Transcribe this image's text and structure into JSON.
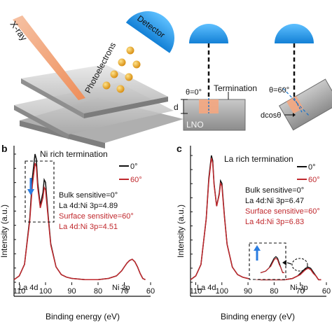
{
  "figure_a": {
    "xray_label": "X-ray",
    "photoelectrons_label": "Photoelectrons",
    "detector_label": "Detector",
    "termination_label": "Termination",
    "theta0_label": "θ=0°",
    "theta60_label": "θ=60°",
    "depth_label": "d",
    "dcos_label": "dcosθ",
    "sample_label": "LNO"
  },
  "panel_b": {
    "letter": "b",
    "title": "Ni rich termination",
    "legend": [
      "0°",
      "60°"
    ],
    "bulk_line": "Bulk sensitive=0°",
    "ratio_bulk": "La 4d:Ni 3p=4.89",
    "surface_line": "Surface sensitive=60°",
    "ratio_surface": "La 4d:Ni 3p=4.51",
    "peak_la": "La 4d",
    "peak_ni": "Ni 3p",
    "xlabel": "Binding energy (eV)",
    "ylabel": "Intensity (a.u.)",
    "xticks": [
      "110",
      "100",
      "90",
      "80",
      "70",
      "60"
    ]
  },
  "panel_c": {
    "letter": "c",
    "title": "La rich termination",
    "legend": [
      "0°",
      "60°"
    ],
    "bulk_line": "Bulk sensitive=0°",
    "ratio_bulk": "La 4d:Ni 3p=6.47",
    "surface_line": "Surface sensitive=60°",
    "ratio_surface": "La 4d:Ni 3p=6.83",
    "peak_la": "La 4d",
    "peak_ni": "Ni 3p",
    "xlabel": "Binding energy (eV)",
    "ylabel": "Intensity (a.u.)",
    "xticks": [
      "110",
      "100",
      "90",
      "80",
      "70",
      "60"
    ]
  },
  "colors": {
    "bulk": "#111111",
    "surface": "#c0282d",
    "detector": "#1f95e6",
    "photoelectron": "#f0a81c",
    "xray": "#f2a37a"
  },
  "chart_data": [
    {
      "type": "line",
      "panel": "b",
      "title": "Ni rich termination",
      "xlabel": "Binding energy (eV)",
      "ylabel": "Intensity (a.u.)",
      "xlim": [
        112,
        60
      ],
      "x_reversed": true,
      "x": [
        112,
        110,
        108,
        106,
        105,
        104,
        103.5,
        103,
        102,
        101,
        100.5,
        100,
        99,
        98,
        96,
        94,
        92,
        90,
        85,
        80,
        76,
        73,
        71,
        70,
        69,
        68,
        67,
        66,
        65,
        64,
        63,
        62
      ],
      "series": [
        {
          "name": "0°",
          "values": [
            0.02,
            0.05,
            0.14,
            0.5,
            0.82,
            1.0,
            0.96,
            0.78,
            0.6,
            0.7,
            0.8,
            0.78,
            0.52,
            0.3,
            0.12,
            0.06,
            0.04,
            0.03,
            0.02,
            0.02,
            0.03,
            0.05,
            0.09,
            0.12,
            0.15,
            0.17,
            0.18,
            0.16,
            0.12,
            0.07,
            0.03,
            0.02
          ]
        },
        {
          "name": "60°",
          "values": [
            0.02,
            0.05,
            0.14,
            0.48,
            0.76,
            0.93,
            0.9,
            0.74,
            0.58,
            0.66,
            0.74,
            0.72,
            0.5,
            0.29,
            0.12,
            0.06,
            0.04,
            0.03,
            0.02,
            0.02,
            0.03,
            0.05,
            0.09,
            0.12,
            0.15,
            0.17,
            0.18,
            0.16,
            0.12,
            0.07,
            0.03,
            0.02
          ]
        }
      ]
    },
    {
      "type": "line",
      "panel": "c",
      "title": "La rich termination",
      "xlabel": "Binding energy (eV)",
      "ylabel": "Intensity (a.u.)",
      "xlim": [
        112,
        60
      ],
      "x_reversed": true,
      "x": [
        112,
        110,
        108,
        106,
        105,
        104,
        103.5,
        103,
        102,
        101,
        100.5,
        100,
        99,
        98,
        96,
        94,
        92,
        90,
        85,
        80,
        76,
        73,
        71,
        70,
        69,
        68,
        67,
        66,
        65,
        64,
        63,
        62
      ],
      "series": [
        {
          "name": "0°",
          "values": [
            0.02,
            0.05,
            0.14,
            0.5,
            0.82,
            1.0,
            0.96,
            0.78,
            0.6,
            0.7,
            0.8,
            0.78,
            0.52,
            0.3,
            0.12,
            0.06,
            0.04,
            0.03,
            0.02,
            0.02,
            0.02,
            0.03,
            0.05,
            0.07,
            0.09,
            0.11,
            0.12,
            0.11,
            0.08,
            0.05,
            0.02,
            0.02
          ]
        },
        {
          "name": "60°",
          "values": [
            0.02,
            0.05,
            0.14,
            0.5,
            0.8,
            0.98,
            0.94,
            0.77,
            0.6,
            0.69,
            0.78,
            0.76,
            0.51,
            0.3,
            0.12,
            0.06,
            0.04,
            0.03,
            0.02,
            0.02,
            0.02,
            0.03,
            0.05,
            0.06,
            0.08,
            0.1,
            0.11,
            0.1,
            0.07,
            0.05,
            0.02,
            0.02
          ]
        }
      ]
    }
  ]
}
